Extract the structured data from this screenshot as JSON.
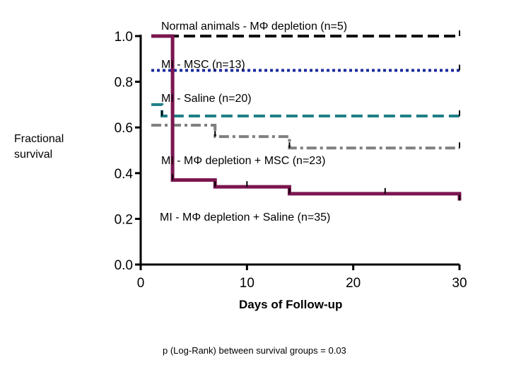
{
  "chart_data": {
    "type": "line",
    "subtype": "kaplan-meier step",
    "title": "",
    "xlabel": "Days of Follow-up",
    "ylabel": "Fractional survival",
    "xlim": [
      0,
      30
    ],
    "ylim": [
      0,
      1.0
    ],
    "xticks": [
      "0",
      "10",
      "20",
      "30"
    ],
    "yticks": [
      "0.0",
      "0.2",
      "0.4",
      "0.6",
      "0.8",
      "1.0"
    ],
    "grid": false,
    "footnote": "p (Log-Rank) between survival groups = 0.03",
    "series": [
      {
        "name": "Normal animals - MΦ depletion (n=5)",
        "color": "#111111",
        "dash": "long-dash",
        "x": [
          1,
          30
        ],
        "y": [
          1.0,
          1.0
        ],
        "censor_x": [
          30
        ]
      },
      {
        "name": "MI - MSC (n=13)",
        "color": "#1a2a9c",
        "dash": "dotted",
        "x": [
          1,
          30
        ],
        "y": [
          0.85,
          0.85
        ],
        "censor_x": [
          30
        ]
      },
      {
        "name": "MI - Saline (n=20)",
        "color": "#1e7f86",
        "dash": "long-dash",
        "x": [
          1,
          2,
          30
        ],
        "y": [
          0.7,
          0.65,
          0.65
        ],
        "censor_x": [
          2,
          30
        ]
      },
      {
        "name": "MI - MΦ depletion + MSC (n=23)",
        "color": "#808080",
        "dash": "dash-dot",
        "x": [
          1,
          7,
          14,
          30
        ],
        "y": [
          0.61,
          0.56,
          0.51,
          0.51
        ],
        "censor_x": [
          7,
          14,
          30
        ]
      },
      {
        "name": "MI - MΦ depletion + Saline (n=35)",
        "color": "#7b1650",
        "dash": "solid",
        "x": [
          1,
          3,
          7,
          14,
          30
        ],
        "y": [
          1.0,
          0.37,
          0.34,
          0.31,
          0.28
        ],
        "censor_x": [
          3,
          7,
          10,
          14,
          23,
          30
        ]
      }
    ]
  }
}
